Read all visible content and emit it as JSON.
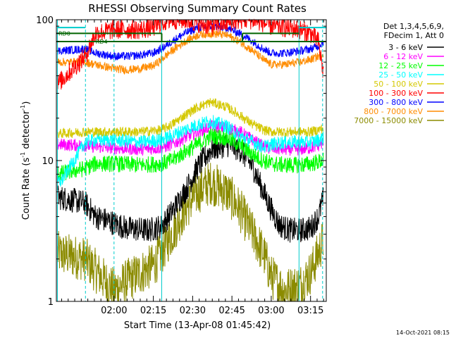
{
  "chart_data": {
    "type": "line",
    "title": "RHESSI Observing Summary Count Rates",
    "xlabel": "Start Time (13-Apr-08 01:45:42)",
    "ylabel": "Count Rate (s",
    "ylabel_sup": "-1",
    "ylabel_tail": " detector",
    "ylabel_close": ")",
    "footer": "14-Oct-2021 08:15",
    "yscale": "log",
    "ylim": [
      1,
      100
    ],
    "xlim_minutes": [
      -7,
      96
    ],
    "y_tick_labels": [
      "1",
      "10",
      "100"
    ],
    "y_ticks": [
      1,
      10,
      100
    ],
    "x_ticks": [
      {
        "label": "02:00",
        "minutes": 15
      },
      {
        "label": "02:15",
        "minutes": 30
      },
      {
        "label": "02:30",
        "minutes": 45
      },
      {
        "label": "02:45",
        "minutes": 60
      },
      {
        "label": "03:00",
        "minutes": 75
      },
      {
        "label": "03:15",
        "minutes": 90
      }
    ],
    "legend": {
      "placement": "right",
      "header1": "Det 1,3,4,5,6,9,",
      "header2": "FDecim 1, Att 0",
      "entries": [
        {
          "label": "3 - 6 keV",
          "color": "#000000"
        },
        {
          "label": "6 - 12 keV",
          "color": "#ff00ff"
        },
        {
          "label": "12 - 25 keV",
          "color": "#00ff00"
        },
        {
          "label": "25 - 50 keV",
          "color": "#00ffff"
        },
        {
          "label": "50 - 100 keV",
          "color": "#d4c800"
        },
        {
          "label": "100 - 300 keV",
          "color": "#ff0000"
        },
        {
          "label": "300 - 800 keV",
          "color": "#0000ff"
        },
        {
          "label": "800 - 7000 keV",
          "color": "#ff8c00"
        },
        {
          "label": "7000 - 15000 keV",
          "color": "#8b8b00"
        }
      ]
    },
    "annotations": {
      "rd0": "RD0",
      "rd4": "RD4",
      "rd0_y": 80,
      "rd4_y": 70,
      "rd0_color": "#006400",
      "night_color": "#00cccc",
      "vertical_solid_minutes": [
        -6.6,
        33.2,
        85.6
      ],
      "vertical_dashed_minutes": [
        4.1,
        15.0,
        94.6
      ]
    },
    "series": [
      {
        "name": "3 - 6 keV",
        "color": "#000000",
        "x": [
          -6.5,
          4,
          8,
          15,
          20,
          28,
          33,
          37,
          42,
          47,
          52,
          58,
          63,
          68,
          72,
          75,
          78,
          82,
          86,
          90,
          93,
          95
        ],
        "y": [
          5.5,
          5.0,
          4.0,
          3.6,
          3.3,
          3.2,
          3.4,
          4.3,
          6.0,
          9.0,
          12.0,
          13.0,
          12.0,
          9.0,
          6.0,
          4.5,
          3.5,
          3.2,
          3.2,
          3.3,
          4.0,
          5.5
        ],
        "noise": 0.09
      },
      {
        "name": "6 - 12 keV",
        "color": "#ff00ff",
        "x": [
          -6.5,
          4,
          8,
          15,
          25,
          33,
          37,
          42,
          47,
          52,
          58,
          63,
          68,
          72,
          75,
          80,
          86,
          90,
          93,
          95
        ],
        "y": [
          13.0,
          12.8,
          12.5,
          12.3,
          12.0,
          12.3,
          13.0,
          14.5,
          16.0,
          17.5,
          17.0,
          16.0,
          14.0,
          12.5,
          12.2,
          12.0,
          12.0,
          12.3,
          12.8,
          13.5
        ],
        "noise": 0.045
      },
      {
        "name": "12 - 25 keV",
        "color": "#00ff00",
        "x": [
          -6.5,
          4,
          8,
          15,
          25,
          33,
          37,
          42,
          47,
          52,
          58,
          63,
          68,
          72,
          75,
          80,
          86,
          90,
          93,
          95
        ],
        "y": [
          8.0,
          8.8,
          9.5,
          9.5,
          9.3,
          9.5,
          10.0,
          11.5,
          13.0,
          15.0,
          14.5,
          13.0,
          11.0,
          10.0,
          9.5,
          9.3,
          9.3,
          9.5,
          9.8,
          10.0
        ],
        "noise": 0.06
      },
      {
        "name": "25 - 50 keV",
        "color": "#00ffff",
        "x": [
          -6.5,
          -5,
          4,
          8,
          15,
          25,
          33,
          37,
          42,
          47,
          52,
          58,
          63,
          68,
          72,
          75,
          80,
          86,
          90,
          93,
          95
        ],
        "y": [
          7.0,
          7.2,
          13.5,
          14.0,
          14.0,
          13.5,
          14.0,
          15.0,
          16.5,
          18.0,
          19.0,
          17.5,
          15.0,
          13.5,
          12.5,
          13.0,
          13.5,
          13.5,
          13.5,
          14.0,
          14.5
        ],
        "noise": 0.05
      },
      {
        "name": "50 - 100 keV",
        "color": "#d4c800",
        "x": [
          -6.5,
          4,
          8,
          15,
          25,
          33,
          37,
          42,
          47,
          52,
          58,
          63,
          68,
          72,
          75,
          80,
          86,
          90,
          93,
          95
        ],
        "y": [
          15.5,
          16.0,
          16.0,
          16.0,
          16.0,
          16.5,
          18.0,
          21.0,
          24.0,
          26.0,
          24.0,
          21.0,
          18.0,
          16.5,
          16.0,
          16.0,
          16.0,
          16.0,
          16.5,
          17.0
        ],
        "noise": 0.035
      },
      {
        "name": "100 - 300 keV",
        "color": "#ff0000",
        "x": [
          -6.5,
          4,
          8,
          15,
          20,
          25,
          30,
          33,
          37,
          42,
          47,
          52,
          58,
          63,
          68,
          72,
          75,
          80,
          86,
          90,
          93,
          95
        ],
        "y": [
          35.0,
          55.0,
          80.0,
          85.0,
          85.0,
          85.0,
          88.0,
          95.0,
          100.0,
          100.0,
          95.0,
          90.0,
          95.0,
          100.0,
          100.0,
          95.0,
          90.0,
          88.0,
          85.0,
          80.0,
          70.0,
          40.0
        ],
        "noise": 0.07
      },
      {
        "name": "300 - 800 keV",
        "color": "#0000ff",
        "x": [
          -6.5,
          4,
          8,
          15,
          20,
          25,
          30,
          33,
          37,
          42,
          47,
          52,
          58,
          63,
          68,
          72,
          75,
          80,
          86,
          90,
          93,
          95
        ],
        "y": [
          60.0,
          62.0,
          58.0,
          55.0,
          55.0,
          56.0,
          58.0,
          62.0,
          70.0,
          80.0,
          88.0,
          90.0,
          88.0,
          80.0,
          70.0,
          62.0,
          58.0,
          58.0,
          60.0,
          62.0,
          65.0,
          70.0
        ],
        "noise": 0.03
      },
      {
        "name": "800 - 7000 keV",
        "color": "#ff8c00",
        "x": [
          -6.5,
          4,
          8,
          15,
          20,
          25,
          30,
          33,
          37,
          42,
          47,
          52,
          58,
          63,
          68,
          72,
          75,
          80,
          86,
          90,
          93,
          95
        ],
        "y": [
          50.0,
          50.0,
          48.0,
          45.0,
          44.0,
          45.0,
          47.0,
          52.0,
          60.0,
          70.0,
          78.0,
          80.0,
          78.0,
          70.0,
          60.0,
          52.0,
          48.0,
          48.0,
          50.0,
          52.0,
          55.0,
          58.0
        ],
        "noise": 0.03
      },
      {
        "name": "7000 - 15000 keV",
        "color": "#8b8b00",
        "x": [
          -6.5,
          4,
          10,
          15,
          20,
          25,
          30,
          33,
          37,
          42,
          47,
          52,
          58,
          63,
          68,
          72,
          75,
          80,
          86,
          90,
          93,
          95
        ],
        "y": [
          2.2,
          2.0,
          1.5,
          1.2,
          1.4,
          1.6,
          1.8,
          2.2,
          3.0,
          4.5,
          6.0,
          7.0,
          6.0,
          4.5,
          3.0,
          2.2,
          1.5,
          1.2,
          1.3,
          1.6,
          2.2,
          2.8
        ],
        "noise": 0.16
      }
    ]
  }
}
